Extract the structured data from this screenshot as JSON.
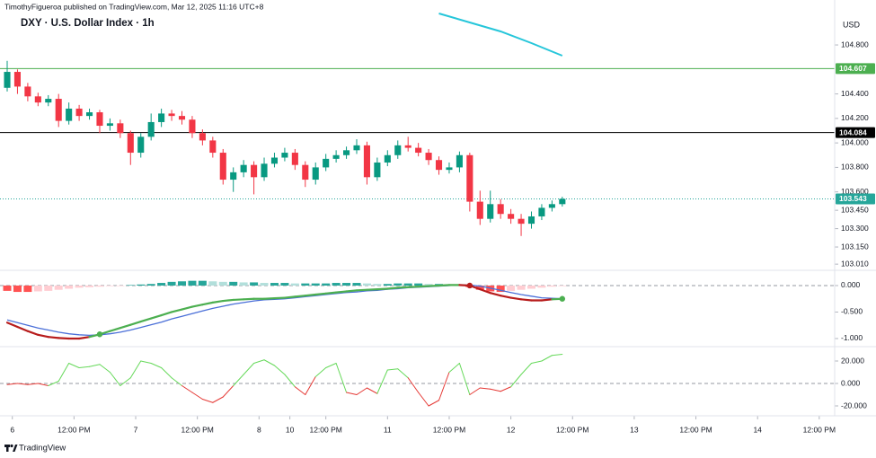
{
  "header": {
    "publisher": "TimothyFigueroa published on TradingView.com, Mar 12, 2025 11:16 UTC+8"
  },
  "footer": {
    "brand": "TradingView"
  },
  "chart_data": [
    {
      "type": "candlestick",
      "title": "DXY · U.S. Dollar Index · 1h",
      "currency": "USD",
      "xlim": [
        -1.4,
        161
      ],
      "xticks": [
        {
          "value": 1,
          "label": "6"
        },
        {
          "value": 13,
          "label": "12:00 PM"
        },
        {
          "value": 25,
          "label": "7"
        },
        {
          "value": 37,
          "label": "12:00 PM"
        },
        {
          "value": 49,
          "label": "8"
        },
        {
          "value": 55,
          "label": "10"
        },
        {
          "value": 62,
          "label": "12:00 PM"
        },
        {
          "value": 74,
          "label": "11"
        },
        {
          "value": 86,
          "label": "12:00 PM"
        },
        {
          "value": 98,
          "label": "12"
        },
        {
          "value": 110,
          "label": "12:00 PM"
        },
        {
          "value": 122,
          "label": "13"
        },
        {
          "value": 134,
          "label": "12:00 PM"
        },
        {
          "value": 146,
          "label": "14"
        },
        {
          "value": 158,
          "label": "12:00 PM"
        }
      ],
      "ylim": [
        102.967,
        105.167
      ],
      "yticks": [
        {
          "value": 104.8,
          "label": "104.800"
        },
        {
          "value": 104.4,
          "label": "104.400"
        },
        {
          "value": 104.2,
          "label": "104.200"
        },
        {
          "value": 104,
          "label": "104.000"
        },
        {
          "value": 103.8,
          "label": "103.800"
        },
        {
          "value": 103.6,
          "label": "103.600"
        },
        {
          "value": 103.45,
          "label": "103.450"
        },
        {
          "value": 103.3,
          "label": "103.300"
        },
        {
          "value": 103.15,
          "label": "103.150"
        },
        {
          "value": 103.01,
          "label": "103.010"
        }
      ],
      "up_color": "#089981",
      "down_color": "#f23645",
      "x": [
        0,
        2,
        4,
        6,
        8,
        10,
        12,
        14,
        16,
        18,
        20,
        22,
        24,
        26,
        28,
        30,
        32,
        34,
        36,
        38,
        40,
        42,
        44,
        46,
        48,
        50,
        52,
        54,
        56,
        58,
        60,
        62,
        64,
        66,
        68,
        70,
        72,
        74,
        76,
        78,
        80,
        82,
        84,
        86,
        88,
        90,
        92,
        94,
        96,
        98,
        100,
        102,
        104,
        106,
        108
      ],
      "open": [
        104.45,
        104.58,
        104.46,
        104.38,
        104.33,
        104.36,
        104.18,
        104.28,
        104.22,
        104.25,
        104.14,
        104.16,
        104.08,
        103.92,
        104.05,
        104.17,
        104.24,
        104.22,
        104.19,
        104.08,
        104.02,
        103.92,
        103.7,
        103.76,
        103.82,
        103.72,
        103.83,
        103.88,
        103.92,
        103.82,
        103.7,
        103.8,
        103.87,
        103.9,
        103.94,
        103.98,
        103.72,
        103.84,
        103.9,
        103.98,
        103.96,
        103.92,
        103.86,
        103.78,
        103.8,
        103.9,
        103.52,
        103.38,
        103.5,
        103.42,
        103.38,
        103.34,
        103.4,
        103.47,
        103.5
      ],
      "high": [
        104.67,
        104.6,
        104.49,
        104.41,
        104.39,
        104.4,
        104.33,
        104.31,
        104.28,
        104.27,
        104.2,
        104.19,
        104.1,
        104.08,
        104.24,
        104.28,
        104.27,
        104.26,
        104.22,
        104.11,
        104.05,
        103.95,
        103.8,
        103.86,
        103.85,
        103.88,
        103.92,
        103.96,
        103.95,
        103.85,
        103.84,
        103.91,
        103.94,
        103.97,
        104.03,
        104.01,
        103.88,
        103.94,
        104.02,
        104.05,
        104.0,
        103.95,
        103.89,
        103.84,
        103.93,
        103.92,
        103.61,
        103.61,
        103.54,
        103.46,
        103.42,
        103.44,
        103.5,
        103.53,
        103.56
      ],
      "low": [
        104.42,
        104.4,
        104.34,
        104.3,
        104.3,
        104.13,
        104.15,
        104.18,
        104.19,
        104.08,
        104.1,
        104.04,
        103.82,
        103.88,
        104.02,
        104.13,
        104.18,
        104.15,
        104.04,
        103.98,
        103.88,
        103.66,
        103.6,
        103.72,
        103.58,
        103.69,
        103.8,
        103.85,
        103.78,
        103.64,
        103.66,
        103.77,
        103.84,
        103.87,
        103.91,
        103.66,
        103.69,
        103.81,
        103.87,
        103.93,
        103.89,
        103.82,
        103.74,
        103.75,
        103.76,
        103.44,
        103.33,
        103.35,
        103.38,
        103.34,
        103.24,
        103.3,
        103.37,
        103.44,
        103.48
      ],
      "close": [
        104.58,
        104.46,
        104.38,
        104.33,
        104.36,
        104.18,
        104.28,
        104.22,
        104.25,
        104.14,
        104.16,
        104.08,
        103.92,
        104.05,
        104.17,
        104.24,
        104.22,
        104.19,
        104.08,
        104.02,
        103.92,
        103.7,
        103.76,
        103.82,
        103.72,
        103.83,
        103.88,
        103.92,
        103.82,
        103.7,
        103.8,
        103.87,
        103.9,
        103.94,
        103.98,
        103.72,
        103.84,
        103.9,
        103.98,
        103.96,
        103.92,
        103.86,
        103.78,
        103.8,
        103.9,
        103.52,
        103.38,
        103.5,
        103.42,
        103.38,
        103.34,
        103.4,
        103.47,
        103.5,
        103.543
      ],
      "overlay": {
        "color": "#26c6da",
        "x": [
          84,
          90,
          96,
          102,
          108
        ],
        "values": [
          105.057,
          104.984,
          104.91,
          104.815,
          104.712
        ]
      },
      "price_lines": [
        {
          "value": 104.607,
          "color": "#4caf50",
          "style": "solid"
        },
        {
          "value": 104.084,
          "color": "#000000",
          "style": "solid"
        },
        {
          "value": 103.543,
          "color": "#26a69a",
          "style": "dotted"
        }
      ]
    },
    {
      "type": "macd",
      "xlim": [
        -1.4,
        161
      ],
      "ylim": [
        -1.136,
        0.254
      ],
      "yticks": [
        {
          "value": 0,
          "label": "0.000"
        },
        {
          "value": -0.5,
          "label": "-0.500"
        },
        {
          "value": -1,
          "label": "-1.000"
        }
      ],
      "zero_line": true,
      "x": [
        0,
        2,
        4,
        6,
        8,
        10,
        12,
        14,
        16,
        18,
        20,
        22,
        24,
        26,
        28,
        30,
        32,
        34,
        36,
        38,
        40,
        42,
        44,
        46,
        48,
        50,
        52,
        54,
        56,
        58,
        60,
        62,
        64,
        66,
        68,
        70,
        72,
        74,
        76,
        78,
        80,
        82,
        84,
        86,
        88,
        90,
        92,
        94,
        96,
        98,
        100,
        102,
        104,
        106,
        108
      ],
      "histogram": {
        "colors": [
          "#26a69a",
          "#b2dfdb",
          "#ff5252",
          "#ffcdd2"
        ],
        "values": [
          -0.1,
          -0.12,
          -0.12,
          -0.11,
          -0.1,
          -0.08,
          -0.06,
          -0.04,
          -0.03,
          -0.02,
          -0.01,
          -0.005,
          0.01,
          0.02,
          0.03,
          0.05,
          0.07,
          0.08,
          0.09,
          0.09,
          0.08,
          0.07,
          0.07,
          0.06,
          0.06,
          0.05,
          0.05,
          0.05,
          0.04,
          0.04,
          0.04,
          0.04,
          0.05,
          0.05,
          0.05,
          0.04,
          0.03,
          0.03,
          0.04,
          0.04,
          0.04,
          0.03,
          0.03,
          0.02,
          0.02,
          -0.03,
          -0.08,
          -0.11,
          -0.12,
          -0.1,
          -0.08,
          -0.06,
          -0.04,
          -0.02,
          -0.01
        ]
      },
      "macd": {
        "colors": [
          "#4caf50",
          "#b71c1c"
        ],
        "values": [
          -0.7,
          -0.78,
          -0.86,
          -0.93,
          -0.97,
          -0.99,
          -1,
          -1,
          -0.97,
          -0.92,
          -0.86,
          -0.8,
          -0.74,
          -0.68,
          -0.62,
          -0.56,
          -0.5,
          -0.45,
          -0.4,
          -0.36,
          -0.32,
          -0.29,
          -0.27,
          -0.26,
          -0.25,
          -0.25,
          -0.24,
          -0.23,
          -0.21,
          -0.19,
          -0.17,
          -0.15,
          -0.13,
          -0.11,
          -0.09,
          -0.08,
          -0.07,
          -0.06,
          -0.04,
          -0.03,
          -0.02,
          -0.01,
          0,
          0.01,
          0.01,
          0,
          -0.07,
          -0.14,
          -0.19,
          -0.23,
          -0.26,
          -0.28,
          -0.28,
          -0.26,
          -0.25
        ]
      },
      "signal": {
        "color": "#4a6fd8",
        "values": [
          -0.65,
          -0.7,
          -0.75,
          -0.8,
          -0.84,
          -0.88,
          -0.91,
          -0.93,
          -0.94,
          -0.93,
          -0.91,
          -0.88,
          -0.84,
          -0.79,
          -0.74,
          -0.69,
          -0.63,
          -0.58,
          -0.53,
          -0.48,
          -0.43,
          -0.39,
          -0.35,
          -0.32,
          -0.29,
          -0.27,
          -0.26,
          -0.25,
          -0.23,
          -0.21,
          -0.19,
          -0.17,
          -0.15,
          -0.13,
          -0.12,
          -0.1,
          -0.09,
          -0.07,
          -0.06,
          -0.04,
          -0.03,
          -0.02,
          -0.01,
          0,
          0.01,
          0.01,
          -0.01,
          -0.05,
          -0.09,
          -0.13,
          -0.17,
          -0.2,
          -0.23,
          -0.24,
          -0.25
        ]
      }
    },
    {
      "type": "line",
      "xlim": [
        -1.4,
        161
      ],
      "ylim": [
        -28,
        32
      ],
      "yticks": [
        {
          "value": 20,
          "label": "20.000"
        },
        {
          "value": 0,
          "label": "0.000"
        },
        {
          "value": -20,
          "label": "-20.000"
        }
      ],
      "zero_line": true,
      "colors": [
        "#66d95a",
        "#e53935"
      ],
      "x": [
        0,
        2,
        4,
        6,
        8,
        10,
        12,
        14,
        16,
        18,
        20,
        22,
        24,
        26,
        28,
        30,
        32,
        34,
        36,
        38,
        40,
        42,
        44,
        46,
        48,
        50,
        52,
        54,
        56,
        58,
        60,
        62,
        64,
        66,
        68,
        70,
        72,
        74,
        76,
        78,
        80,
        82,
        84,
        86,
        88,
        90,
        92,
        94,
        96,
        98,
        100,
        102,
        104,
        106,
        108
      ],
      "values": [
        -1,
        0,
        -1,
        0,
        -2,
        2,
        18,
        14,
        15,
        17,
        10,
        -2,
        5,
        20,
        18,
        14,
        5,
        -2,
        -8,
        -14,
        -17,
        -12,
        -2,
        8,
        18,
        21,
        16,
        8,
        -3,
        -10,
        6,
        14,
        18,
        -8,
        -10,
        -4,
        -9,
        12,
        13,
        5,
        -8,
        -20,
        -15,
        10,
        18,
        -10,
        -4,
        -5,
        -7,
        -3,
        8,
        18,
        20,
        25,
        26
      ]
    }
  ]
}
